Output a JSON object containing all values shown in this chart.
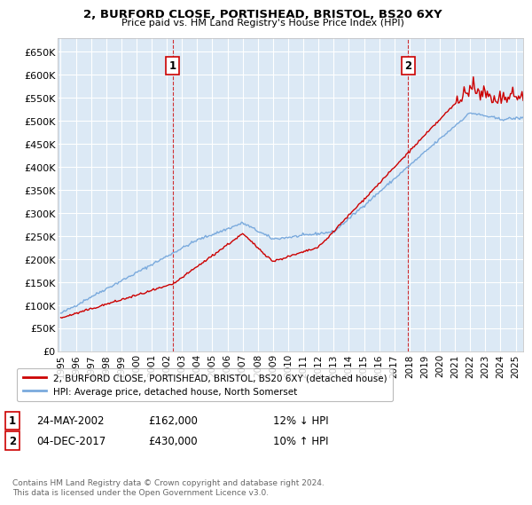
{
  "title1": "2, BURFORD CLOSE, PORTISHEAD, BRISTOL, BS20 6XY",
  "title2": "Price paid vs. HM Land Registry's House Price Index (HPI)",
  "ylabel_ticks": [
    "£0",
    "£50K",
    "£100K",
    "£150K",
    "£200K",
    "£250K",
    "£300K",
    "£350K",
    "£400K",
    "£450K",
    "£500K",
    "£550K",
    "£600K",
    "£650K"
  ],
  "ytick_vals": [
    0,
    50000,
    100000,
    150000,
    200000,
    250000,
    300000,
    350000,
    400000,
    450000,
    500000,
    550000,
    600000,
    650000
  ],
  "ylim": [
    0,
    680000
  ],
  "xlim_start": 1994.8,
  "xlim_end": 2025.5,
  "plot_bg": "#dce9f5",
  "fig_bg": "#ffffff",
  "hpi_color": "#7aaadd",
  "sold_color": "#cc0000",
  "marker1_x": 2002.39,
  "marker1_y": 162000,
  "marker1_label": "1",
  "marker2_x": 2017.92,
  "marker2_y": 430000,
  "marker2_label": "2",
  "legend_line1": "2, BURFORD CLOSE, PORTISHEAD, BRISTOL, BS20 6XY (detached house)",
  "legend_line2": "HPI: Average price, detached house, North Somerset",
  "ann1_date": "24-MAY-2002",
  "ann1_price": "£162,000",
  "ann1_hpi": "12% ↓ HPI",
  "ann2_date": "04-DEC-2017",
  "ann2_price": "£430,000",
  "ann2_hpi": "10% ↑ HPI",
  "footer": "Contains HM Land Registry data © Crown copyright and database right 2024.\nThis data is licensed under the Open Government Licence v3.0.",
  "grid_color": "#ffffff",
  "xticklabels": [
    "1995",
    "1996",
    "1997",
    "1998",
    "1999",
    "2000",
    "2001",
    "2002",
    "2003",
    "2004",
    "2005",
    "2006",
    "2007",
    "2008",
    "2009",
    "2010",
    "2011",
    "2012",
    "2013",
    "2014",
    "2015",
    "2016",
    "2017",
    "2018",
    "2019",
    "2020",
    "2021",
    "2022",
    "2023",
    "2024",
    "2025"
  ]
}
